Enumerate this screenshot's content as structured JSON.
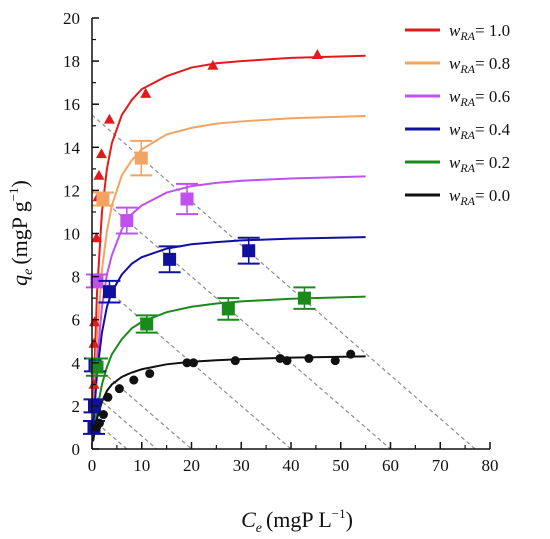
{
  "chart_data": {
    "type": "scatter",
    "xlabel": {
      "main": "C",
      "sub": "e",
      "unit": "(mgP L",
      "sup": "−1",
      "close": ")"
    },
    "ylabel": {
      "main": "q",
      "sub": "e",
      "unit": "(mgP g",
      "sup": "−1",
      "close": ")"
    },
    "xlim": [
      0,
      80
    ],
    "ylim": [
      0,
      20
    ],
    "x_ticks": [
      0,
      10,
      20,
      30,
      40,
      50,
      60,
      70,
      80
    ],
    "y_ticks": [
      0,
      2,
      4,
      6,
      8,
      10,
      12,
      14,
      16,
      18,
      20
    ],
    "grid": false,
    "legend_position": "top-right",
    "series": [
      {
        "name": "w_RA= 1.0",
        "legend": {
          "prefix": "w",
          "sub": "RA",
          "suffix": "= 1.0"
        },
        "color": "#e31a1c",
        "marker": "triangle",
        "error_bars": false,
        "points": [
          {
            "x": 0.3,
            "y": 1.0
          },
          {
            "x": 0.4,
            "y": 3.0
          },
          {
            "x": 0.4,
            "y": 4.9
          },
          {
            "x": 0.5,
            "y": 5.9
          },
          {
            "x": 0.7,
            "y": 7.9
          },
          {
            "x": 0.9,
            "y": 9.8
          },
          {
            "x": 1.2,
            "y": 11.7
          },
          {
            "x": 1.4,
            "y": 12.7
          },
          {
            "x": 1.9,
            "y": 13.7
          },
          {
            "x": 3.5,
            "y": 15.3
          },
          {
            "x": 10.8,
            "y": 16.5
          },
          {
            "x": 24.3,
            "y": 17.8
          },
          {
            "x": 45.3,
            "y": 18.3
          }
        ],
        "curve": [
          {
            "x": 0.2,
            "y": 1.7
          },
          {
            "x": 1,
            "y": 7.2
          },
          {
            "x": 2,
            "y": 11.0
          },
          {
            "x": 3,
            "y": 13.0
          },
          {
            "x": 4,
            "y": 14.2
          },
          {
            "x": 6,
            "y": 15.5
          },
          {
            "x": 8,
            "y": 16.2
          },
          {
            "x": 10,
            "y": 16.7
          },
          {
            "x": 15,
            "y": 17.3
          },
          {
            "x": 20,
            "y": 17.7
          },
          {
            "x": 25,
            "y": 17.9
          },
          {
            "x": 30,
            "y": 18.0
          },
          {
            "x": 40,
            "y": 18.15
          },
          {
            "x": 55,
            "y": 18.25
          }
        ]
      },
      {
        "name": "w_RA= 0.8",
        "legend": {
          "prefix": "w",
          "sub": "RA",
          "suffix": "= 0.8"
        },
        "color": "#f4a460",
        "marker": "square",
        "error_bars": true,
        "points": [
          {
            "x": 2.2,
            "y": 11.6,
            "err": 0.3
          },
          {
            "x": 9.9,
            "y": 13.5,
            "err": 0.8
          }
        ],
        "curve": [
          {
            "x": 0.2,
            "y": 1.1
          },
          {
            "x": 1,
            "y": 5.1
          },
          {
            "x": 2,
            "y": 8.3
          },
          {
            "x": 3,
            "y": 10.1
          },
          {
            "x": 4,
            "y": 11.3
          },
          {
            "x": 6,
            "y": 12.7
          },
          {
            "x": 8,
            "y": 13.4
          },
          {
            "x": 10,
            "y": 13.9
          },
          {
            "x": 15,
            "y": 14.6
          },
          {
            "x": 20,
            "y": 14.9
          },
          {
            "x": 25,
            "y": 15.1
          },
          {
            "x": 30,
            "y": 15.2
          },
          {
            "x": 40,
            "y": 15.35
          },
          {
            "x": 55,
            "y": 15.45
          }
        ]
      },
      {
        "name": "w_RA= 0.6",
        "legend": {
          "prefix": "w",
          "sub": "RA",
          "suffix": "= 0.6"
        },
        "color": "#c050f0",
        "marker": "square",
        "error_bars": true,
        "points": [
          {
            "x": 1.0,
            "y": 7.8,
            "err": 0.3
          },
          {
            "x": 7.0,
            "y": 10.6,
            "err": 0.6
          },
          {
            "x": 19.1,
            "y": 11.6,
            "err": 0.7
          }
        ],
        "curve": [
          {
            "x": 0.2,
            "y": 0.9
          },
          {
            "x": 1,
            "y": 4.0
          },
          {
            "x": 2,
            "y": 6.6
          },
          {
            "x": 3,
            "y": 8.1
          },
          {
            "x": 4,
            "y": 9.0
          },
          {
            "x": 6,
            "y": 10.2
          },
          {
            "x": 8,
            "y": 10.9
          },
          {
            "x": 10,
            "y": 11.3
          },
          {
            "x": 15,
            "y": 11.9
          },
          {
            "x": 20,
            "y": 12.2
          },
          {
            "x": 25,
            "y": 12.35
          },
          {
            "x": 30,
            "y": 12.45
          },
          {
            "x": 40,
            "y": 12.55
          },
          {
            "x": 55,
            "y": 12.65
          }
        ]
      },
      {
        "name": "w_RA= 0.4",
        "legend": {
          "prefix": "w",
          "sub": "RA",
          "suffix": "= 0.4"
        },
        "color": "#1010a0",
        "marker": "square",
        "error_bars": true,
        "points": [
          {
            "x": 0.6,
            "y": 3.9,
            "err": 0.3
          },
          {
            "x": 3.5,
            "y": 7.3,
            "err": 0.5
          },
          {
            "x": 15.6,
            "y": 8.8,
            "err": 0.6
          },
          {
            "x": 31.5,
            "y": 9.2,
            "err": 0.6
          }
        ],
        "curve": [
          {
            "x": 0.2,
            "y": 0.8
          },
          {
            "x": 1,
            "y": 3.5
          },
          {
            "x": 2,
            "y": 5.4
          },
          {
            "x": 3,
            "y": 6.6
          },
          {
            "x": 4,
            "y": 7.3
          },
          {
            "x": 6,
            "y": 8.1
          },
          {
            "x": 8,
            "y": 8.6
          },
          {
            "x": 10,
            "y": 8.9
          },
          {
            "x": 15,
            "y": 9.3
          },
          {
            "x": 20,
            "y": 9.5
          },
          {
            "x": 25,
            "y": 9.6
          },
          {
            "x": 30,
            "y": 9.68
          },
          {
            "x": 40,
            "y": 9.76
          },
          {
            "x": 55,
            "y": 9.83
          }
        ],
        "extra_points": [
          {
            "x": 0.5,
            "y": 2.0,
            "err": 0.3
          },
          {
            "x": 0.4,
            "y": 1.0,
            "err": 0.3
          }
        ]
      },
      {
        "name": "w_RA= 0.2",
        "legend": {
          "prefix": "w",
          "sub": "RA",
          "suffix": "= 0.2"
        },
        "color": "#1a8a1a",
        "marker": "square",
        "error_bars": true,
        "points": [
          {
            "x": 1.0,
            "y": 3.8,
            "err": 0.4
          },
          {
            "x": 11.0,
            "y": 5.8,
            "err": 0.4
          },
          {
            "x": 27.4,
            "y": 6.5,
            "err": 0.5
          },
          {
            "x": 42.7,
            "y": 7.0,
            "err": 0.5
          }
        ],
        "curve": [
          {
            "x": 0.2,
            "y": 0.4
          },
          {
            "x": 1,
            "y": 1.8
          },
          {
            "x": 2,
            "y": 3.0
          },
          {
            "x": 3,
            "y": 3.8
          },
          {
            "x": 4,
            "y": 4.4
          },
          {
            "x": 6,
            "y": 5.1
          },
          {
            "x": 8,
            "y": 5.6
          },
          {
            "x": 10,
            "y": 5.9
          },
          {
            "x": 15,
            "y": 6.35
          },
          {
            "x": 20,
            "y": 6.6
          },
          {
            "x": 25,
            "y": 6.75
          },
          {
            "x": 30,
            "y": 6.85
          },
          {
            "x": 40,
            "y": 6.97
          },
          {
            "x": 55,
            "y": 7.07
          }
        ]
      },
      {
        "name": "w_RA= 0.0",
        "legend": {
          "prefix": "w",
          "sub": "RA",
          "suffix": "= 0.0"
        },
        "color": "#111111",
        "marker": "circle",
        "error_bars": false,
        "points": [
          {
            "x": 0.9,
            "y": 1.0
          },
          {
            "x": 1.5,
            "y": 1.2
          },
          {
            "x": 2.3,
            "y": 1.6
          },
          {
            "x": 3.2,
            "y": 2.4
          },
          {
            "x": 5.5,
            "y": 2.8
          },
          {
            "x": 8.4,
            "y": 3.2
          },
          {
            "x": 11.6,
            "y": 3.5
          },
          {
            "x": 19.1,
            "y": 4.0
          },
          {
            "x": 20.4,
            "y": 4.0
          },
          {
            "x": 28.8,
            "y": 4.1
          },
          {
            "x": 37.8,
            "y": 4.2
          },
          {
            "x": 39.2,
            "y": 4.1
          },
          {
            "x": 43.6,
            "y": 4.2
          },
          {
            "x": 48.9,
            "y": 4.1
          },
          {
            "x": 52.0,
            "y": 4.4
          }
        ],
        "curve": [
          {
            "x": 0.2,
            "y": 0.35
          },
          {
            "x": 1,
            "y": 1.4
          },
          {
            "x": 2,
            "y": 2.2
          },
          {
            "x": 3,
            "y": 2.7
          },
          {
            "x": 4,
            "y": 3.0
          },
          {
            "x": 6,
            "y": 3.35
          },
          {
            "x": 8,
            "y": 3.55
          },
          {
            "x": 10,
            "y": 3.7
          },
          {
            "x": 15,
            "y": 3.93
          },
          {
            "x": 20,
            "y": 4.05
          },
          {
            "x": 25,
            "y": 4.12
          },
          {
            "x": 30,
            "y": 4.17
          },
          {
            "x": 40,
            "y": 4.24
          },
          {
            "x": 55,
            "y": 4.3
          }
        ]
      }
    ],
    "operating_lines": {
      "color": "#8c8c8c",
      "style": "dashed",
      "lines": [
        {
          "x0": 0,
          "y0": 15.5,
          "x1": 77,
          "y1": 0
        },
        {
          "x0": 0,
          "y0": 12.0,
          "x1": 60,
          "y1": 0
        },
        {
          "x0": 0,
          "y0": 8.0,
          "x1": 40,
          "y1": 0
        },
        {
          "x0": 0,
          "y0": 4.0,
          "x1": 20,
          "y1": 0
        },
        {
          "x0": 0,
          "y0": 2.6,
          "x1": 13,
          "y1": 0
        },
        {
          "x0": 0,
          "y0": 1.4,
          "x1": 7,
          "y1": 0
        }
      ]
    }
  }
}
